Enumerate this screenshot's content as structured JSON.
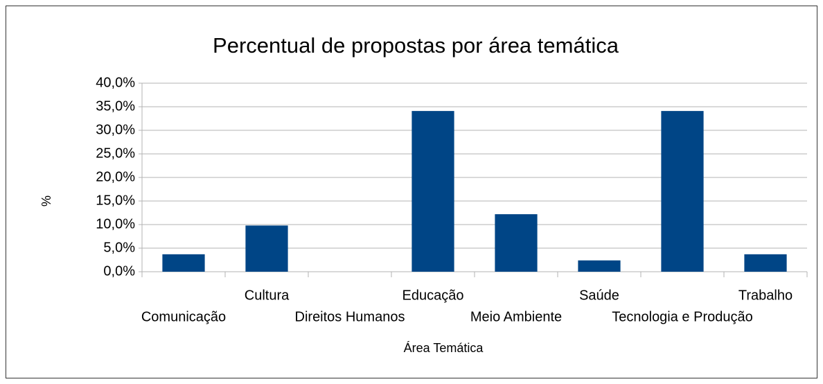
{
  "chart_data": {
    "type": "bar",
    "title": "Percentual de propostas por área temática",
    "x_label": "Área Temática",
    "y_label": "%",
    "categories": [
      "Comunicação",
      "Cultura",
      "Direitos Humanos",
      "Educação",
      "Meio Ambiente",
      "Saúde",
      "Tecnologia e Produção",
      "Trabalho"
    ],
    "values": [
      3.7,
      9.8,
      0,
      34.1,
      12.2,
      2.4,
      34.1,
      3.7
    ],
    "color": "#004586",
    "ylim": [
      0,
      40
    ],
    "yticks": [
      {
        "value": 0,
        "label": "0,0%"
      },
      {
        "value": 5,
        "label": "5,0%"
      },
      {
        "value": 10,
        "label": "10,0%"
      },
      {
        "value": 15,
        "label": "15,0%"
      },
      {
        "value": 20,
        "label": "20,0%"
      },
      {
        "value": 25,
        "label": "25,0%"
      },
      {
        "value": 30,
        "label": "30,0%"
      },
      {
        "value": 35,
        "label": "35,0%"
      },
      {
        "value": 40,
        "label": "40,0%"
      }
    ],
    "grid": true
  }
}
